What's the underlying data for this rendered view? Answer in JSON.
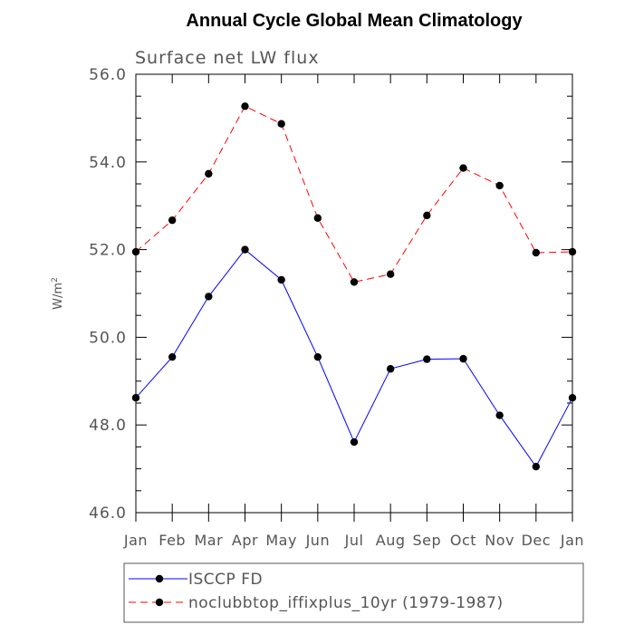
{
  "chart_data": {
    "type": "line",
    "title": "Annual Cycle Global Mean Climatology",
    "subtitle": "Surface net LW flux",
    "ylabel": "W/m",
    "ylabel_superscript": "2",
    "ylim": [
      46.0,
      56.0
    ],
    "yticks": [
      "46.0",
      "48.0",
      "50.0",
      "52.0",
      "54.0",
      "56.0"
    ],
    "categories": [
      "Jan",
      "Feb",
      "Mar",
      "Apr",
      "May",
      "Jun",
      "Jul",
      "Aug",
      "Sep",
      "Oct",
      "Nov",
      "Dec",
      "Jan"
    ],
    "series": [
      {
        "name": "ISCCP FD",
        "color": "#0000ff",
        "dash": "solid",
        "values": [
          48.62,
          49.55,
          50.93,
          52.0,
          51.31,
          49.55,
          47.61,
          49.28,
          49.5,
          49.51,
          48.22,
          47.05,
          48.62
        ]
      },
      {
        "name": "noclubbtop_iffixplus_10yr (1979-1987)",
        "color": "#ff0000",
        "dash": "dashed",
        "values": [
          51.95,
          52.67,
          53.73,
          55.27,
          54.87,
          52.72,
          51.26,
          51.44,
          52.78,
          53.86,
          53.46,
          51.93,
          51.95
        ]
      }
    ],
    "legend": "bottom"
  }
}
